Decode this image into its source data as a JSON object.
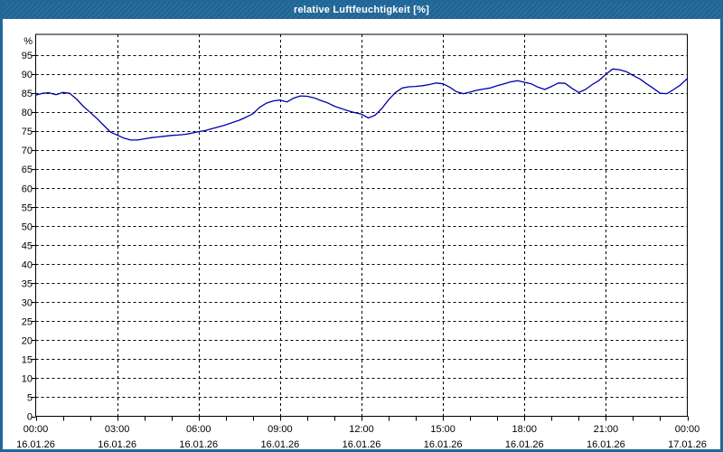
{
  "window": {
    "title": "relative Luftfeuchtigkeit [%]",
    "title_bar_color": "#1f6899",
    "border_color": "#1f6899",
    "background": "#ffffff"
  },
  "chart_data": {
    "type": "line",
    "title": "relative Luftfeuchtigkeit [%]",
    "ylabel": "%",
    "xlabel": "",
    "ylim": [
      0,
      100.5
    ],
    "x_start_hour": 0,
    "x_end_hour": 24,
    "sample_interval_hours": 0.25,
    "grid": "dashed",
    "grid_color": "#000000",
    "axis_color": "#000000",
    "legend": "none",
    "y_unit_label": "%",
    "y_ticks": [
      95,
      90,
      85,
      80,
      75,
      70,
      65,
      60,
      55,
      50,
      45,
      40,
      35,
      30,
      25,
      20,
      15,
      10,
      5,
      0
    ],
    "x_gridline_hours": [
      3,
      6,
      9,
      12,
      15,
      18,
      21
    ],
    "x_minor_tick_hours": 1,
    "x_ticks": [
      {
        "hour": 0,
        "time": "00:00",
        "date": "16.01.26"
      },
      {
        "hour": 3,
        "time": "03:00",
        "date": "16.01.26"
      },
      {
        "hour": 6,
        "time": "06:00",
        "date": "16.01.26"
      },
      {
        "hour": 9,
        "time": "09:00",
        "date": "16.01.26"
      },
      {
        "hour": 12,
        "time": "12:00",
        "date": "16.01.26"
      },
      {
        "hour": 15,
        "time": "15:00",
        "date": "16.01.26"
      },
      {
        "hour": 18,
        "time": "18:00",
        "date": "16.01.26"
      },
      {
        "hour": 21,
        "time": "21:00",
        "date": "16.01.26"
      },
      {
        "hour": 24,
        "time": "00:00",
        "date": "17.01.26"
      }
    ],
    "series": [
      {
        "name": "relative Luftfeuchtigkeit [%]",
        "color": "#0000aa",
        "values": [
          84.5,
          85.0,
          85.1,
          84.6,
          85.2,
          85.0,
          83.5,
          81.6,
          80.0,
          78.4,
          76.6,
          74.8,
          74.0,
          73.2,
          72.7,
          72.7,
          73.0,
          73.3,
          73.5,
          73.7,
          73.9,
          74.0,
          74.2,
          74.5,
          74.9,
          75.2,
          75.7,
          76.2,
          76.7,
          77.3,
          77.9,
          78.7,
          79.6,
          81.3,
          82.4,
          83.0,
          83.2,
          82.7,
          83.7,
          84.3,
          84.2,
          83.8,
          83.1,
          82.5,
          81.6,
          81.0,
          80.4,
          79.9,
          79.5,
          78.5,
          79.2,
          81.0,
          83.3,
          85.2,
          86.4,
          86.7,
          86.8,
          87.0,
          87.3,
          87.7,
          87.5,
          86.6,
          85.4,
          84.9,
          85.3,
          85.8,
          86.1,
          86.4,
          87.0,
          87.5,
          88.0,
          88.3,
          87.9,
          87.5,
          86.6,
          86.0,
          86.8,
          87.7,
          87.6,
          86.3,
          85.2,
          86.0,
          87.3,
          88.4,
          90.0,
          91.4,
          91.2,
          90.7,
          89.7,
          88.8,
          87.5,
          86.3,
          85.0,
          84.9,
          86.0,
          87.2,
          88.9
        ]
      }
    ]
  }
}
